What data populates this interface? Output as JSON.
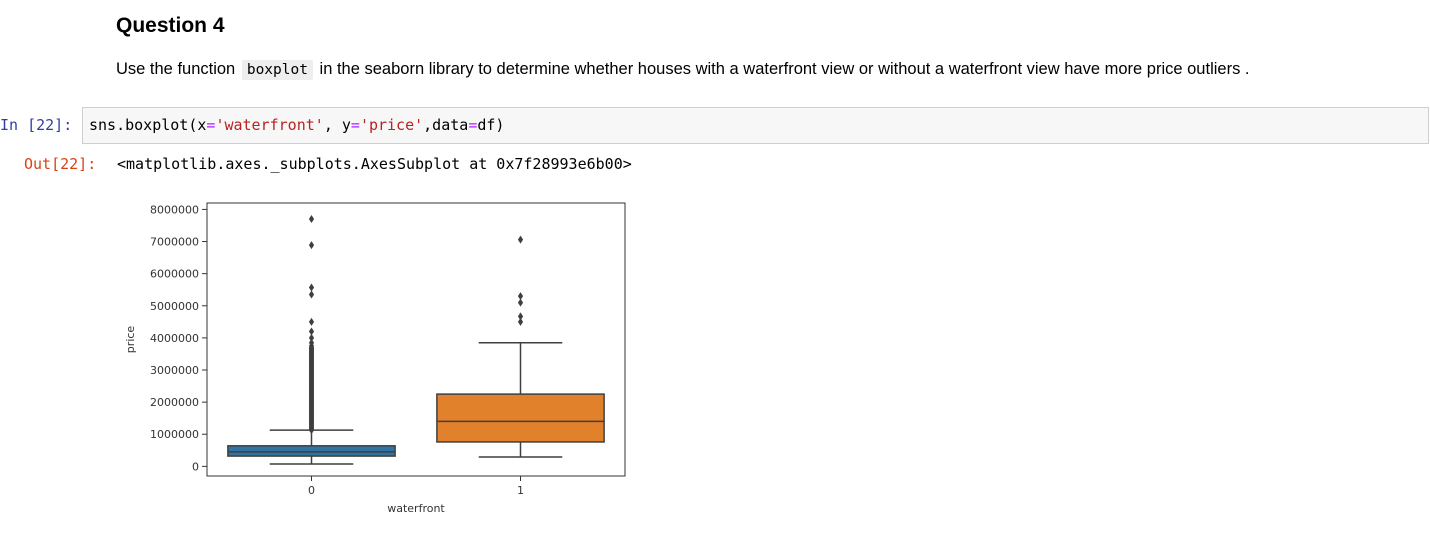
{
  "markdown": {
    "title": "Question 4",
    "para_before": "Use the function",
    "code": "boxplot",
    "para_after": "in the seaborn library to determine whether houses with a waterfront view or without a waterfront view have more price outliers ."
  },
  "input_cell": {
    "prompt": "In [22]:",
    "code_parts": [
      "sns.boxplot(x",
      "=",
      "'waterfront'",
      ", y",
      "=",
      "'price'",
      ",data",
      "=",
      "df)"
    ]
  },
  "output_cell": {
    "prompt": "Out[22]:",
    "text": "<matplotlib.axes._subplots.AxesSubplot at 0x7f28993e6b00>"
  },
  "chart_data": {
    "type": "box",
    "xlabel": "waterfront",
    "ylabel": "price",
    "categories": [
      "0",
      "1"
    ],
    "ylim": [
      -300000,
      8200000
    ],
    "yticks": [
      0,
      1000000,
      2000000,
      3000000,
      4000000,
      5000000,
      6000000,
      7000000,
      8000000
    ],
    "ytick_labels": [
      "0",
      "1000000",
      "2000000",
      "3000000",
      "4000000",
      "5000000",
      "6000000",
      "7000000",
      "8000000"
    ],
    "series": [
      {
        "category": "0",
        "color": "#3274a1",
        "whisker_low": 75000,
        "q1": 320000,
        "median": 450000,
        "q3": 640000,
        "whisker_high": 1130000,
        "outliers_dense_range": [
          1130000,
          3700000
        ],
        "outliers": [
          3750000,
          3850000,
          4000000,
          4200000,
          4500000,
          5350000,
          5570000,
          6890000,
          7700000
        ]
      },
      {
        "category": "1",
        "color": "#e1812c",
        "whisker_low": 290000,
        "q1": 760000,
        "median": 1400000,
        "q3": 2250000,
        "whisker_high": 3850000,
        "outliers_dense_range": null,
        "outliers": [
          4500000,
          4670000,
          5100000,
          5300000,
          7060000
        ]
      }
    ]
  }
}
